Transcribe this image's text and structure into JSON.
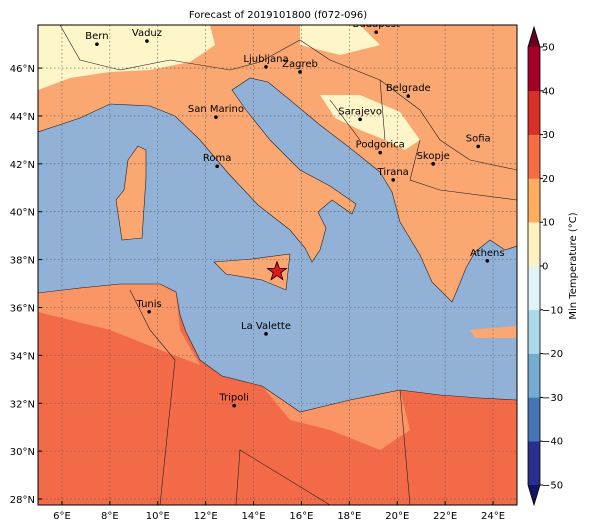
{
  "map": {
    "title": "Forecast of 2019101800 (f072-096)",
    "lonlim": [
      5,
      25
    ],
    "latlim": [
      27.75,
      47.8
    ],
    "lonticks": [
      {
        "value": 6,
        "label": "6°E"
      },
      {
        "value": 8,
        "label": "8°E"
      },
      {
        "value": 10,
        "label": "10°E"
      },
      {
        "value": 12,
        "label": "12°E"
      },
      {
        "value": 14,
        "label": "14°E"
      },
      {
        "value": 16,
        "label": "16°E"
      },
      {
        "value": 18,
        "label": "18°E"
      },
      {
        "value": 20,
        "label": "20°E"
      },
      {
        "value": 22,
        "label": "22°E"
      },
      {
        "value": 24,
        "label": "24°E"
      }
    ],
    "latticks": [
      {
        "value": 28,
        "label": "28°N"
      },
      {
        "value": 30,
        "label": "30°N"
      },
      {
        "value": 32,
        "label": "32°N"
      },
      {
        "value": 34,
        "label": "34°N"
      },
      {
        "value": 36,
        "label": "36°N"
      },
      {
        "value": 38,
        "label": "38°N"
      },
      {
        "value": 40,
        "label": "40°N"
      },
      {
        "value": 42,
        "label": "42°N"
      },
      {
        "value": 44,
        "label": "44°N"
      },
      {
        "value": 46,
        "label": "46°N"
      }
    ],
    "cities": [
      {
        "name": "Bern",
        "lon": 7.46,
        "lat": 47.0
      },
      {
        "name": "Vaduz",
        "lon": 9.55,
        "lat": 47.13
      },
      {
        "name": "Budapest",
        "lon": 19.12,
        "lat": 47.5
      },
      {
        "name": "Ljubljana",
        "lon": 14.52,
        "lat": 46.05
      },
      {
        "name": "Zagreb",
        "lon": 15.94,
        "lat": 45.84
      },
      {
        "name": "Belgrade",
        "lon": 20.46,
        "lat": 44.83
      },
      {
        "name": "San Marino",
        "lon": 12.43,
        "lat": 43.95
      },
      {
        "name": "Sarajevo",
        "lon": 18.45,
        "lat": 43.86
      },
      {
        "name": "Sofia",
        "lon": 23.38,
        "lat": 42.73
      },
      {
        "name": "Podgorica",
        "lon": 19.29,
        "lat": 42.47
      },
      {
        "name": "Skopje",
        "lon": 21.5,
        "lat": 42.0
      },
      {
        "name": "Roma",
        "lon": 12.48,
        "lat": 41.9
      },
      {
        "name": "Tirana",
        "lon": 19.83,
        "lat": 41.33
      },
      {
        "name": "Athens",
        "lon": 23.76,
        "lat": 37.95
      },
      {
        "name": "Tunis",
        "lon": 9.64,
        "lat": 35.82
      },
      {
        "name": "La Valette",
        "lon": 14.52,
        "lat": 34.9
      },
      {
        "name": "Tripoli",
        "lon": 13.19,
        "lat": 31.9
      }
    ],
    "marker": {
      "lon": 14.98,
      "lat": 37.5,
      "color": "#e8141c"
    },
    "colorbar": {
      "label": "Min Temperature (°C)",
      "lim": [
        -50,
        50
      ],
      "ticks": [
        {
          "value": -50,
          "label": "−50"
        },
        {
          "value": -40,
          "label": "−40"
        },
        {
          "value": -30,
          "label": "−30"
        },
        {
          "value": -20,
          "label": "−20"
        },
        {
          "value": -10,
          "label": "−10"
        },
        0,
        10,
        20,
        30,
        40,
        50
      ],
      "colors": [
        "#2b2f8c",
        "#4575b4",
        "#74add1",
        "#abd9e9",
        "#e0f3f8",
        "#fef3c0",
        "#fdae61",
        "#f46d43",
        "#d73027",
        "#a50026"
      ],
      "under": "#141466",
      "over": "#67001f"
    }
  }
}
